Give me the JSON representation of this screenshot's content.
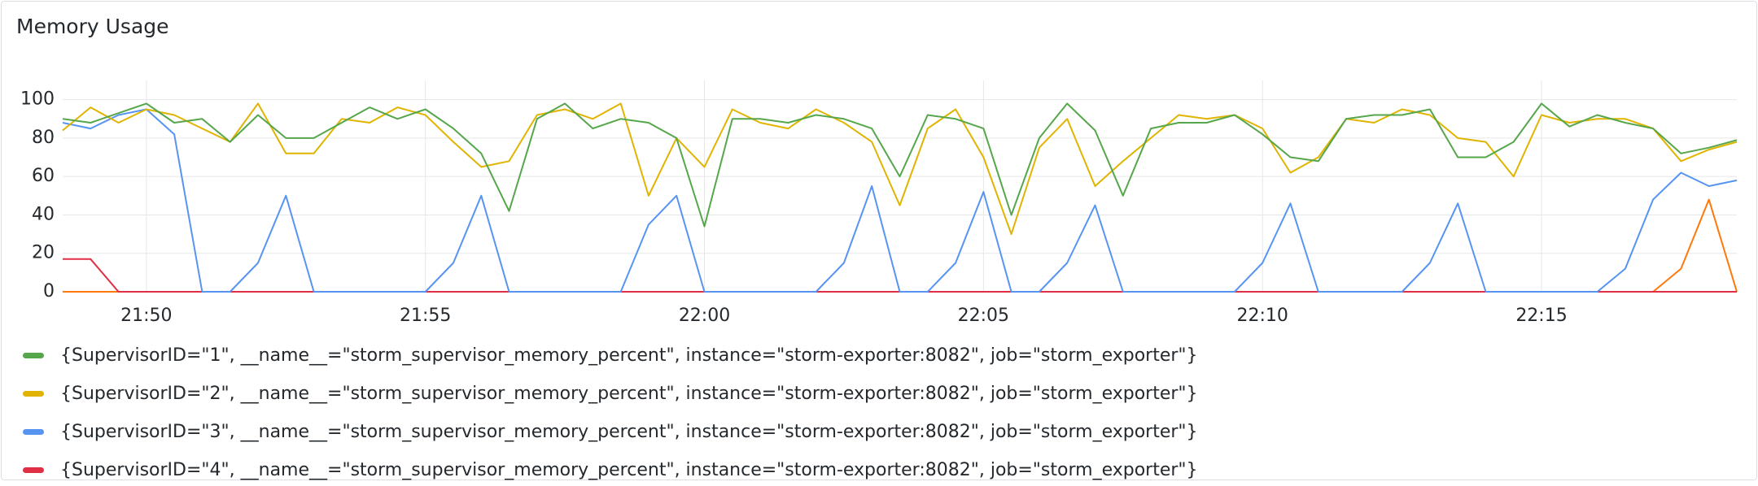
{
  "chart_data": {
    "type": "line",
    "title": "Memory Usage",
    "x": [
      1308.5,
      1309,
      1309.5,
      1310,
      1310.5,
      1311,
      1311.5,
      1312,
      1312.5,
      1313,
      1313.5,
      1314,
      1314.5,
      1315,
      1315.5,
      1316,
      1316.5,
      1317,
      1317.5,
      1318,
      1318.5,
      1319,
      1319.5,
      1320,
      1320.5,
      1321,
      1321.5,
      1322,
      1322.5,
      1323,
      1323.5,
      1324,
      1324.5,
      1325,
      1325.5,
      1326,
      1326.5,
      1327,
      1327.5,
      1328,
      1328.5,
      1329,
      1329.5,
      1330,
      1330.5,
      1331,
      1331.5,
      1332,
      1332.5,
      1333,
      1333.5,
      1334,
      1334.5,
      1335,
      1335.5,
      1336,
      1336.5,
      1337,
      1337.5,
      1338,
      1338.5
    ],
    "xlim": [
      1308.5,
      1338.5
    ],
    "xticks": [
      {
        "value": 1310,
        "label": "21:50"
      },
      {
        "value": 1315,
        "label": "21:55"
      },
      {
        "value": 1320,
        "label": "22:00"
      },
      {
        "value": 1325,
        "label": "22:05"
      },
      {
        "value": 1330,
        "label": "22:10"
      },
      {
        "value": 1335,
        "label": "22:15"
      }
    ],
    "ylim": [
      0,
      110
    ],
    "yticks": [
      0,
      20,
      40,
      60,
      80,
      100
    ],
    "grid": true,
    "series": [
      {
        "name": "{SupervisorID=\"1\", __name__=\"storm_supervisor_memory_percent\", instance=\"storm-exporter:8082\", job=\"storm_exporter\"}",
        "color": "#56a64b",
        "values": [
          90,
          88,
          93,
          98,
          88,
          90,
          78,
          92,
          80,
          80,
          88,
          96,
          90,
          95,
          85,
          72,
          42,
          90,
          98,
          85,
          90,
          88,
          80,
          34,
          90,
          90,
          88,
          92,
          90,
          85,
          60,
          92,
          90,
          85,
          40,
          80,
          98,
          84,
          50,
          85,
          88,
          88,
          92,
          82,
          70,
          68,
          90,
          92,
          92,
          95,
          70,
          70,
          78,
          98,
          86,
          92,
          88,
          85,
          72,
          75,
          79
        ]
      },
      {
        "name": "{SupervisorID=\"2\", __name__=\"storm_supervisor_memory_percent\", instance=\"storm-exporter:8082\", job=\"storm_exporter\"}",
        "color": "#e0b400",
        "values": [
          84,
          96,
          88,
          95,
          92,
          85,
          78,
          98,
          72,
          72,
          90,
          88,
          96,
          92,
          78,
          65,
          68,
          92,
          95,
          90,
          98,
          50,
          80,
          65,
          95,
          88,
          85,
          95,
          88,
          78,
          45,
          85,
          95,
          70,
          30,
          75,
          90,
          55,
          68,
          80,
          92,
          90,
          92,
          85,
          62,
          70,
          90,
          88,
          95,
          92,
          80,
          78,
          60,
          92,
          88,
          90,
          90,
          85,
          68,
          74,
          78
        ]
      },
      {
        "name": "{SupervisorID=\"3\", __name__=\"storm_supervisor_memory_percent\", instance=\"storm-exporter:8082\", job=\"storm_exporter\"}",
        "color": "#5794f2",
        "values": [
          88,
          85,
          92,
          95,
          82,
          0,
          0,
          15,
          50,
          0,
          0,
          0,
          0,
          0,
          15,
          50,
          0,
          0,
          0,
          0,
          0,
          35,
          50,
          0,
          0,
          0,
          0,
          0,
          15,
          55,
          0,
          0,
          15,
          52,
          0,
          0,
          15,
          45,
          0,
          0,
          0,
          0,
          0,
          15,
          46,
          0,
          0,
          0,
          0,
          15,
          46,
          0,
          0,
          0,
          0,
          0,
          12,
          48,
          62,
          55,
          58
        ]
      },
      {
        "name": "{SupervisorID=\"4\", __name__=\"storm_supervisor_memory_percent\", instance=\"storm-exporter:8082\", job=\"storm_exporter\"}",
        "color": "#e02f44",
        "values": [
          17,
          17,
          0,
          0,
          0,
          0,
          0,
          0,
          0,
          0,
          0,
          0,
          0,
          0,
          0,
          0,
          0,
          0,
          0,
          0,
          0,
          0,
          0,
          0,
          0,
          0,
          0,
          0,
          0,
          0,
          0,
          0,
          0,
          0,
          0,
          0,
          0,
          0,
          0,
          0,
          0,
          0,
          0,
          0,
          0,
          0,
          0,
          0,
          0,
          0,
          0,
          0,
          0,
          0,
          0,
          0,
          0,
          0,
          0,
          0,
          0
        ]
      },
      {
        "color": "#ff780a",
        "values": [
          0,
          0,
          0,
          0,
          0,
          0,
          0,
          0,
          0,
          0,
          0,
          0,
          0,
          0,
          0,
          0,
          0,
          0,
          0,
          0,
          0,
          0,
          0,
          0,
          0,
          0,
          0,
          0,
          0,
          0,
          0,
          0,
          0,
          0,
          0,
          0,
          0,
          0,
          0,
          0,
          0,
          0,
          0,
          0,
          0,
          0,
          0,
          0,
          0,
          0,
          0,
          0,
          0,
          0,
          0,
          0,
          0,
          0,
          12,
          48,
          0
        ]
      }
    ]
  }
}
